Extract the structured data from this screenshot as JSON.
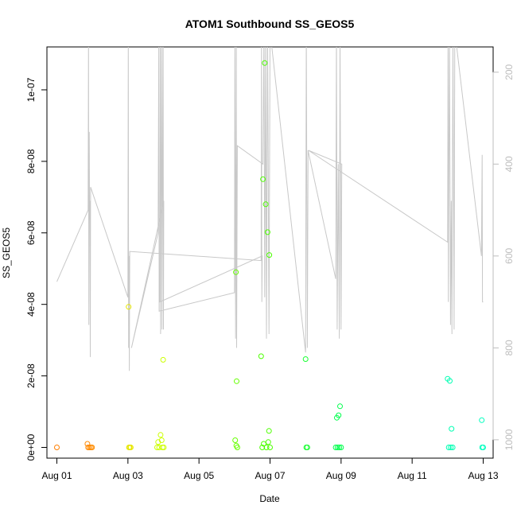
{
  "chart_data": {
    "type": "scatter",
    "title": "ATOM1 Southbound SS_GEOS5",
    "xlabel": "Date",
    "ylabel": "SS_GEOS5",
    "x_ticks": [
      "Aug 01",
      "Aug 03",
      "Aug 05",
      "Aug 07",
      "Aug 09",
      "Aug 11",
      "Aug 13"
    ],
    "x_tick_days": [
      1,
      3,
      5,
      7,
      9,
      11,
      13
    ],
    "xlim_days": [
      0.72,
      13.28
    ],
    "y_ticks": [
      "0e+00",
      "2e-08",
      "4e-08",
      "6e-08",
      "8e-08",
      "1e-07"
    ],
    "y_tick_values": [
      0,
      2e-08,
      4e-08,
      6e-08,
      8e-08,
      1e-07
    ],
    "ylim": [
      -3e-09,
      1.12e-07
    ],
    "y2_ticks": [
      "200",
      "400",
      "600",
      "800",
      "1000"
    ],
    "y2_tick_values": [
      200,
      400,
      600,
      800,
      1000
    ],
    "y2lim": [
      1040,
      145
    ],
    "y2_color": "#bdbdbd",
    "grid": false,
    "points_note": "x = day of August (fractional), y = SS_GEOS5, color = point color",
    "points": [
      {
        "x": 1.0,
        "y": 0,
        "color": "#ff7f00"
      },
      {
        "x": 1.86,
        "y": 1e-09,
        "color": "#ff8800"
      },
      {
        "x": 1.88,
        "y": 0,
        "color": "#ff8800"
      },
      {
        "x": 1.92,
        "y": 0,
        "color": "#ff8800"
      },
      {
        "x": 1.96,
        "y": 0,
        "color": "#ff8c00"
      },
      {
        "x": 1.99,
        "y": 0,
        "color": "#ff8c00"
      },
      {
        "x": 3.02,
        "y": 3.93e-08,
        "color": "#e6e600"
      },
      {
        "x": 3.03,
        "y": 0,
        "color": "#e6e600"
      },
      {
        "x": 3.05,
        "y": 0,
        "color": "#e6e600"
      },
      {
        "x": 3.08,
        "y": 0,
        "color": "#e6e600"
      },
      {
        "x": 3.82,
        "y": 0,
        "color": "#ccff00"
      },
      {
        "x": 3.85,
        "y": 1.5e-09,
        "color": "#ccff00"
      },
      {
        "x": 3.88,
        "y": 0,
        "color": "#ccff00"
      },
      {
        "x": 3.92,
        "y": 3.5e-09,
        "color": "#ccff00"
      },
      {
        "x": 3.95,
        "y": 2e-09,
        "color": "#ccff00"
      },
      {
        "x": 3.97,
        "y": 0,
        "color": "#ccff00"
      },
      {
        "x": 3.99,
        "y": 2.45e-08,
        "color": "#ccff00"
      },
      {
        "x": 4.01,
        "y": 0,
        "color": "#ccff00"
      },
      {
        "x": 6.02,
        "y": 2e-09,
        "color": "#66ff00"
      },
      {
        "x": 6.04,
        "y": 4.9e-08,
        "color": "#66ff00"
      },
      {
        "x": 6.06,
        "y": 1.85e-08,
        "color": "#66ff00"
      },
      {
        "x": 6.05,
        "y": 5e-10,
        "color": "#66ff00"
      },
      {
        "x": 6.08,
        "y": 0,
        "color": "#66ff00"
      },
      {
        "x": 6.75,
        "y": 2.55e-08,
        "color": "#4cff00"
      },
      {
        "x": 6.78,
        "y": 0,
        "color": "#4cff00"
      },
      {
        "x": 6.8,
        "y": 7.5e-08,
        "color": "#4cff00"
      },
      {
        "x": 6.82,
        "y": 1e-09,
        "color": "#4cff00"
      },
      {
        "x": 6.85,
        "y": 1.075e-07,
        "color": "#4cff00"
      },
      {
        "x": 6.88,
        "y": 6.8e-08,
        "color": "#4cff00"
      },
      {
        "x": 6.9,
        "y": 0,
        "color": "#4cff00"
      },
      {
        "x": 6.93,
        "y": 6.02e-08,
        "color": "#4cff00"
      },
      {
        "x": 6.95,
        "y": 1.5e-09,
        "color": "#4cff00"
      },
      {
        "x": 6.97,
        "y": 4.6e-09,
        "color": "#4cff00"
      },
      {
        "x": 6.98,
        "y": 5.38e-08,
        "color": "#4cff00"
      },
      {
        "x": 7.0,
        "y": 0,
        "color": "#4cff00"
      },
      {
        "x": 8.0,
        "y": 2.47e-08,
        "color": "#1aff33"
      },
      {
        "x": 8.02,
        "y": 0,
        "color": "#1aff33"
      },
      {
        "x": 8.05,
        "y": 0,
        "color": "#1aff33"
      },
      {
        "x": 8.85,
        "y": 0,
        "color": "#00ff4d"
      },
      {
        "x": 8.88,
        "y": 8.3e-09,
        "color": "#00ff4d"
      },
      {
        "x": 8.9,
        "y": 0,
        "color": "#00ff4d"
      },
      {
        "x": 8.93,
        "y": 9e-09,
        "color": "#00ff4d"
      },
      {
        "x": 8.95,
        "y": 0,
        "color": "#00ff4d"
      },
      {
        "x": 8.97,
        "y": 1.15e-08,
        "color": "#00ff4d"
      },
      {
        "x": 9.0,
        "y": 0,
        "color": "#00ff4d"
      },
      {
        "x": 12.0,
        "y": 1.92e-08,
        "color": "#00ffb3"
      },
      {
        "x": 12.03,
        "y": 0,
        "color": "#00ffb3"
      },
      {
        "x": 12.06,
        "y": 1.86e-08,
        "color": "#00ffb3"
      },
      {
        "x": 12.09,
        "y": 0,
        "color": "#00ffb3"
      },
      {
        "x": 12.11,
        "y": 5.2e-09,
        "color": "#00ffb3"
      },
      {
        "x": 12.14,
        "y": 0,
        "color": "#00ffb3"
      },
      {
        "x": 12.96,
        "y": 7.6e-09,
        "color": "#00ffbf"
      },
      {
        "x": 12.97,
        "y": 0,
        "color": "#00ffbf"
      },
      {
        "x": 13.0,
        "y": 0,
        "color": "#00ffbf"
      }
    ],
    "pressure_note": "grey line on right axis: x = day of August, p = pressure",
    "pressure_color": "#c8c8c8",
    "pressure_line": [
      [
        1.0,
        656
      ],
      [
        1.88,
        500
      ],
      [
        1.89,
        110
      ],
      [
        1.9,
        750
      ],
      [
        1.91,
        330
      ],
      [
        1.92,
        520
      ],
      [
        1.93,
        480
      ],
      [
        1.94,
        820
      ],
      [
        1.95,
        450
      ],
      [
        3.0,
        690
      ],
      [
        3.01,
        110
      ],
      [
        3.02,
        800
      ],
      [
        3.03,
        600
      ],
      [
        3.04,
        850
      ],
      [
        3.05,
        590
      ],
      [
        6.75,
        610
      ],
      [
        6.76,
        110
      ],
      [
        6.77,
        700
      ],
      [
        6.78,
        600
      ],
      [
        3.9,
        700
      ],
      [
        3.91,
        110
      ],
      [
        3.92,
        770
      ],
      [
        3.93,
        500
      ],
      [
        3.95,
        110
      ],
      [
        3.96,
        760
      ],
      [
        3.97,
        520
      ],
      [
        3.99,
        110
      ],
      [
        4.0,
        760
      ],
      [
        4.01,
        480
      ],
      [
        3.1,
        800
      ],
      [
        3.85,
        550
      ],
      [
        3.87,
        110
      ],
      [
        3.88,
        720
      ],
      [
        6.0,
        680
      ],
      [
        6.01,
        110
      ],
      [
        6.03,
        780
      ],
      [
        6.04,
        520
      ],
      [
        6.05,
        110
      ],
      [
        6.06,
        800
      ],
      [
        6.08,
        360
      ],
      [
        6.8,
        400
      ],
      [
        6.83,
        110
      ],
      [
        6.85,
        690
      ],
      [
        6.88,
        110
      ],
      [
        6.9,
        780
      ],
      [
        6.93,
        110
      ],
      [
        6.97,
        770
      ],
      [
        7.0,
        110
      ],
      [
        8.0,
        810
      ],
      [
        8.02,
        110
      ],
      [
        8.05,
        800
      ],
      [
        8.07,
        370
      ],
      [
        8.85,
        650
      ],
      [
        8.87,
        110
      ],
      [
        8.89,
        760
      ],
      [
        8.92,
        400
      ],
      [
        8.95,
        780
      ],
      [
        8.97,
        110
      ],
      [
        9.0,
        760
      ],
      [
        9.02,
        400
      ],
      [
        8.08,
        370
      ],
      [
        12.0,
        570
      ],
      [
        12.01,
        110
      ],
      [
        12.02,
        700
      ],
      [
        12.05,
        110
      ],
      [
        12.08,
        750
      ],
      [
        12.1,
        480
      ],
      [
        12.12,
        770
      ],
      [
        12.15,
        110
      ],
      [
        12.18,
        760
      ],
      [
        12.2,
        110
      ],
      [
        12.95,
        600
      ],
      [
        12.97,
        380
      ],
      [
        12.98,
        700
      ],
      [
        13.0,
        700
      ]
    ]
  }
}
